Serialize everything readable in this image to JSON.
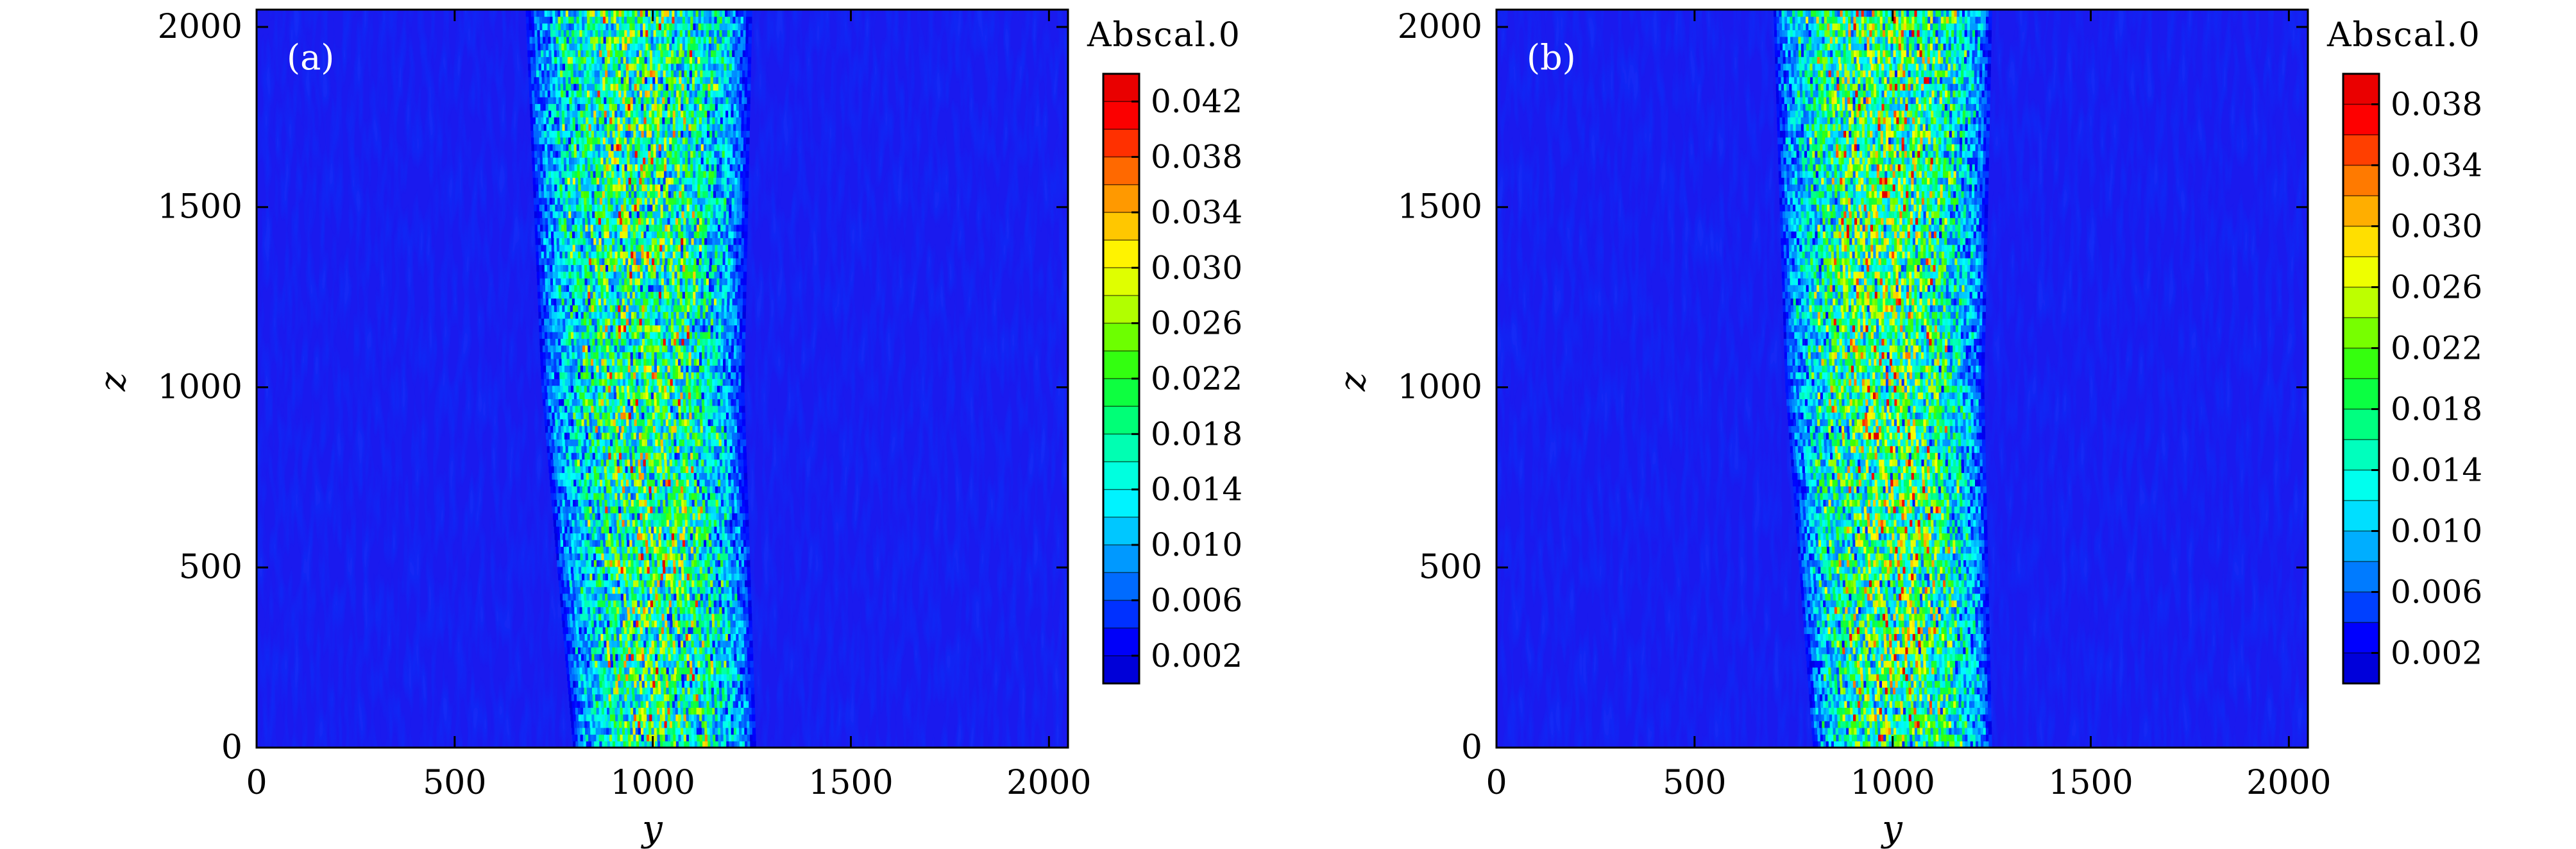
{
  "chart_data": [
    {
      "type": "heatmap",
      "panel": "(a)",
      "xlabel": "y",
      "ylabel": "z",
      "xlim": [
        0,
        2048
      ],
      "ylim": [
        0,
        2048
      ],
      "xticks": [
        0,
        500,
        1000,
        1500,
        2000
      ],
      "yticks": [
        0,
        500,
        1000,
        1500,
        2000
      ],
      "colorbar": {
        "title": "Abscal.0",
        "ticks": [
          "0.002",
          "0.006",
          "0.010",
          "0.014",
          "0.018",
          "0.022",
          "0.026",
          "0.030",
          "0.034",
          "0.038",
          "0.042"
        ],
        "min": 0.0,
        "max": 0.044,
        "levels": 22
      },
      "beam": {
        "left_edge": [
          {
            "z": 0,
            "y": 800
          },
          {
            "z": 1000,
            "y": 720
          },
          {
            "z": 2048,
            "y": 680
          }
        ],
        "right_edge": [
          {
            "z": 0,
            "y": 1260
          },
          {
            "z": 1000,
            "y": 1230
          },
          {
            "z": 2048,
            "y": 1250
          }
        ],
        "peak_value": 0.042,
        "background_value": 0.002
      }
    },
    {
      "type": "heatmap",
      "panel": "(b)",
      "xlabel": "y",
      "ylabel": "z",
      "xlim": [
        0,
        2048
      ],
      "ylim": [
        0,
        2048
      ],
      "xticks": [
        0,
        500,
        1000,
        1500,
        2000
      ],
      "yticks": [
        0,
        500,
        1000,
        1500,
        2000
      ],
      "colorbar": {
        "title": "Abscal.0",
        "ticks": [
          "0.002",
          "0.006",
          "0.010",
          "0.014",
          "0.018",
          "0.022",
          "0.026",
          "0.030",
          "0.034",
          "0.038"
        ],
        "min": 0.0,
        "max": 0.04,
        "levels": 20
      },
      "beam": {
        "left_edge": [
          {
            "z": 0,
            "y": 800
          },
          {
            "z": 1000,
            "y": 730
          },
          {
            "z": 2048,
            "y": 700
          }
        ],
        "right_edge": [
          {
            "z": 0,
            "y": 1250
          },
          {
            "z": 1000,
            "y": 1230
          },
          {
            "z": 2048,
            "y": 1250
          }
        ],
        "peak_value": 0.038,
        "background_value": 0.002
      }
    }
  ],
  "colors": {
    "background_field": "#1a1aee",
    "colormap": [
      "#0000c8",
      "#0000ff",
      "#0066ff",
      "#00b4ff",
      "#00ffff",
      "#00ffb4",
      "#00ff50",
      "#40ff00",
      "#b4ff00",
      "#ffff00",
      "#ffb400",
      "#ff6400",
      "#ff0000",
      "#e00000"
    ]
  }
}
